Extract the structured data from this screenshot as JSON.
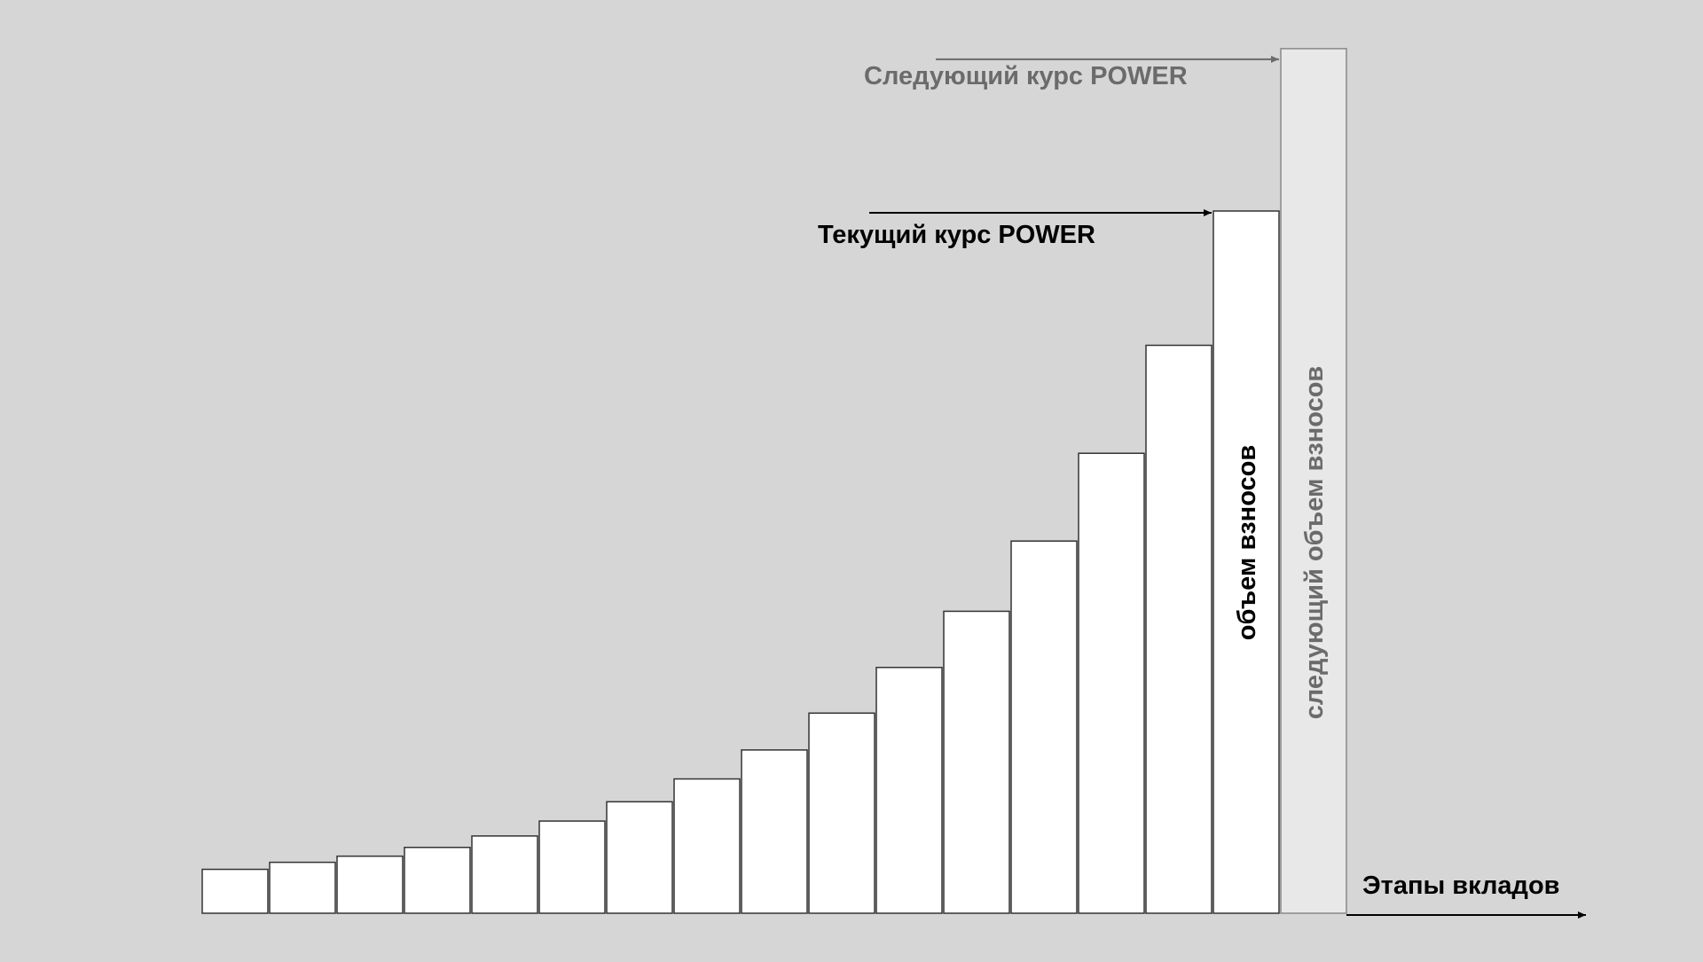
{
  "chart_data": {
    "type": "bar",
    "series": [
      {
        "values": [
          0.05,
          0.058,
          0.065,
          0.075,
          0.088,
          0.105,
          0.127,
          0.153,
          0.186,
          0.228,
          0.28,
          0.344,
          0.424,
          0.524,
          0.647,
          0.8
        ]
      }
    ],
    "next_value": 0.985,
    "bar_label": "объем взносов",
    "next_bar_label": "следующий объем взносов",
    "current_rate_label": "Текущий курс POWER",
    "next_rate_label": "Следующий курс POWER",
    "xlabel": "Этапы вкладов",
    "grid": false,
    "legend": "none"
  },
  "colors": {
    "background": "#d6d6d6",
    "bar_fill": "#ffffff",
    "next_bar_fill": "#e8e8e8",
    "stroke": "#333333",
    "current_text": "#000000",
    "next_text": "#6b6b6b"
  }
}
